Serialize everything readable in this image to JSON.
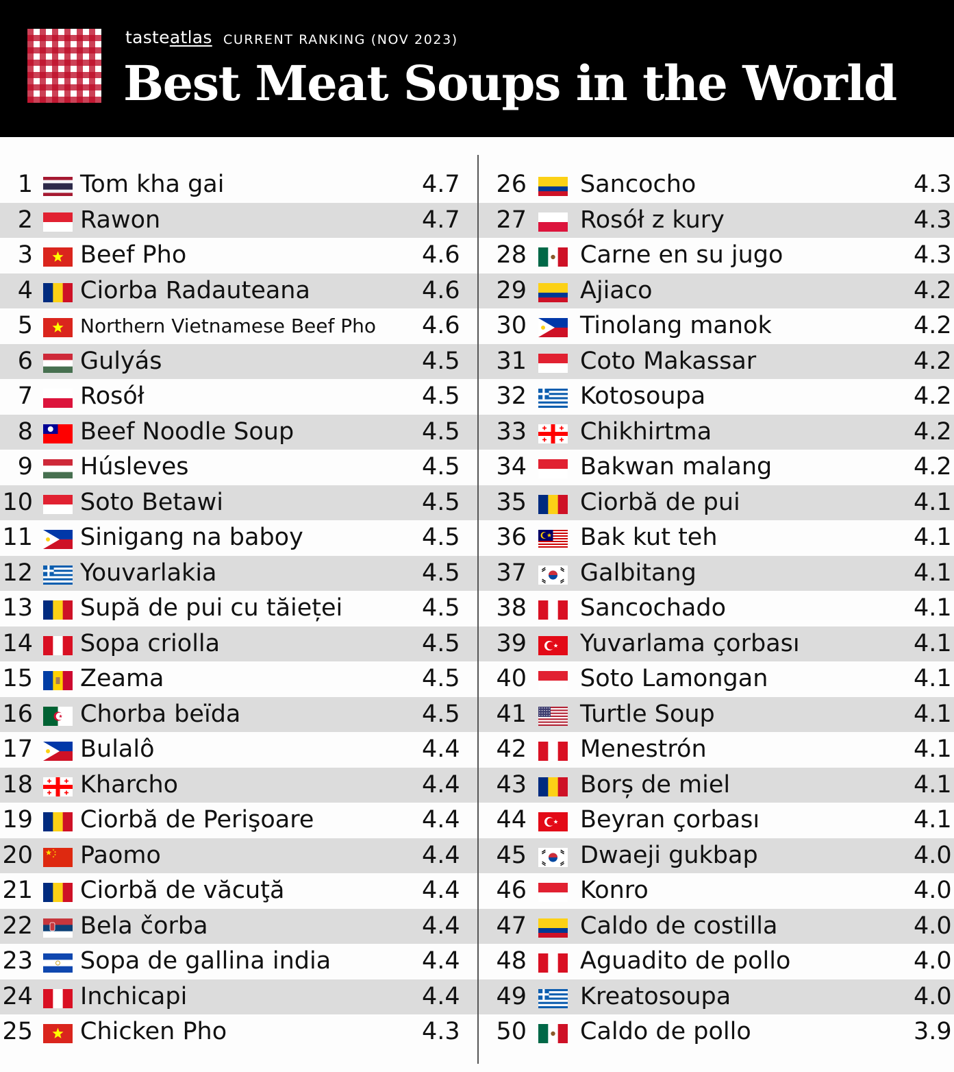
{
  "header": {
    "brand_part1": "taste",
    "brand_part2": "atlas",
    "ranking_label": "CURRENT RANKING (NOV 2023)",
    "title": "Best Meat Soups in the World"
  },
  "colors": {
    "header_bg": "#000000",
    "row_alt": "#dcdcdc",
    "logo_red": "#be0c28"
  },
  "rows": [
    {
      "rank": "1",
      "country": "thailand",
      "name": "Tom kha gai",
      "score": "4.7"
    },
    {
      "rank": "2",
      "country": "indonesia",
      "name": "Rawon",
      "score": "4.7"
    },
    {
      "rank": "3",
      "country": "vietnam",
      "name": "Beef Pho",
      "score": "4.6"
    },
    {
      "rank": "4",
      "country": "romania",
      "name": "Ciorba Radauteana",
      "score": "4.6"
    },
    {
      "rank": "5",
      "country": "vietnam",
      "name": "Northern Vietnamese Beef Pho",
      "score": "4.6"
    },
    {
      "rank": "6",
      "country": "hungary",
      "name": "Gulyás",
      "score": "4.5"
    },
    {
      "rank": "7",
      "country": "poland",
      "name": "Rosół",
      "score": "4.5"
    },
    {
      "rank": "8",
      "country": "taiwan",
      "name": "Beef Noodle Soup",
      "score": "4.5"
    },
    {
      "rank": "9",
      "country": "hungary",
      "name": "Húsleves",
      "score": "4.5"
    },
    {
      "rank": "10",
      "country": "indonesia",
      "name": "Soto Betawi",
      "score": "4.5"
    },
    {
      "rank": "11",
      "country": "philippines",
      "name": "Sinigang na baboy",
      "score": "4.5"
    },
    {
      "rank": "12",
      "country": "greece",
      "name": "Youvarlakia",
      "score": "4.5"
    },
    {
      "rank": "13",
      "country": "romania",
      "name": "Supă de pui cu tăieței",
      "score": "4.5"
    },
    {
      "rank": "14",
      "country": "peru",
      "name": "Sopa criolla",
      "score": "4.5"
    },
    {
      "rank": "15",
      "country": "moldova",
      "name": "Zeama",
      "score": "4.5"
    },
    {
      "rank": "16",
      "country": "algeria",
      "name": "Chorba beïda",
      "score": "4.5"
    },
    {
      "rank": "17",
      "country": "philippines",
      "name": "Bulalô",
      "score": "4.4"
    },
    {
      "rank": "18",
      "country": "georgia",
      "name": "Kharcho",
      "score": "4.4"
    },
    {
      "rank": "19",
      "country": "romania",
      "name": "Ciorbă de Perişoare",
      "score": "4.4"
    },
    {
      "rank": "20",
      "country": "china",
      "name": "Paomo",
      "score": "4.4"
    },
    {
      "rank": "21",
      "country": "romania",
      "name": "Ciorbă de văcuţă",
      "score": "4.4"
    },
    {
      "rank": "22",
      "country": "serbia",
      "name": "Bela čorba",
      "score": "4.4"
    },
    {
      "rank": "23",
      "country": "elsalvador",
      "name": "Sopa de gallina india",
      "score": "4.4"
    },
    {
      "rank": "24",
      "country": "peru",
      "name": "Inchicapi",
      "score": "4.4"
    },
    {
      "rank": "25",
      "country": "vietnam",
      "name": "Chicken Pho",
      "score": "4.3"
    },
    {
      "rank": "26",
      "country": "colombia",
      "name": "Sancocho",
      "score": "4.3"
    },
    {
      "rank": "27",
      "country": "poland",
      "name": "Rosół z kury",
      "score": "4.3"
    },
    {
      "rank": "28",
      "country": "mexico",
      "name": "Carne en su jugo",
      "score": "4.3"
    },
    {
      "rank": "29",
      "country": "colombia",
      "name": "Ajiaco",
      "score": "4.2"
    },
    {
      "rank": "30",
      "country": "philippines",
      "name": "Tinolang manok",
      "score": "4.2"
    },
    {
      "rank": "31",
      "country": "indonesia",
      "name": "Coto Makassar",
      "score": "4.2"
    },
    {
      "rank": "32",
      "country": "greece",
      "name": "Kotosoupa",
      "score": "4.2"
    },
    {
      "rank": "33",
      "country": "georgia",
      "name": "Chikhirtma",
      "score": "4.2"
    },
    {
      "rank": "34",
      "country": "indonesia",
      "name": "Bakwan malang",
      "score": "4.2"
    },
    {
      "rank": "35",
      "country": "romania",
      "name": "Ciorbă de pui",
      "score": "4.1"
    },
    {
      "rank": "36",
      "country": "malaysia",
      "name": "Bak kut teh",
      "score": "4.1"
    },
    {
      "rank": "37",
      "country": "korea",
      "name": "Galbitang",
      "score": "4.1"
    },
    {
      "rank": "38",
      "country": "peru",
      "name": "Sancochado",
      "score": "4.1"
    },
    {
      "rank": "39",
      "country": "turkey",
      "name": "Yuvarlama çorbası",
      "score": "4.1"
    },
    {
      "rank": "40",
      "country": "indonesia",
      "name": "Soto Lamongan",
      "score": "4.1"
    },
    {
      "rank": "41",
      "country": "usa",
      "name": "Turtle Soup",
      "score": "4.1"
    },
    {
      "rank": "42",
      "country": "peru",
      "name": "Menestrón",
      "score": "4.1"
    },
    {
      "rank": "43",
      "country": "romania",
      "name": "Borș de miel",
      "score": "4.1"
    },
    {
      "rank": "44",
      "country": "turkey",
      "name": "Beyran çorbası",
      "score": "4.1"
    },
    {
      "rank": "45",
      "country": "korea",
      "name": "Dwaeji gukbap",
      "score": "4.0"
    },
    {
      "rank": "46",
      "country": "indonesia",
      "name": "Konro",
      "score": "4.0"
    },
    {
      "rank": "47",
      "country": "colombia",
      "name": "Caldo de costilla",
      "score": "4.0"
    },
    {
      "rank": "48",
      "country": "peru",
      "name": "Aguadito de pollo",
      "score": "4.0"
    },
    {
      "rank": "49",
      "country": "greece",
      "name": "Kreatosoupa",
      "score": "4.0"
    },
    {
      "rank": "50",
      "country": "mexico",
      "name": "Caldo de pollo",
      "score": "3.9"
    }
  ]
}
